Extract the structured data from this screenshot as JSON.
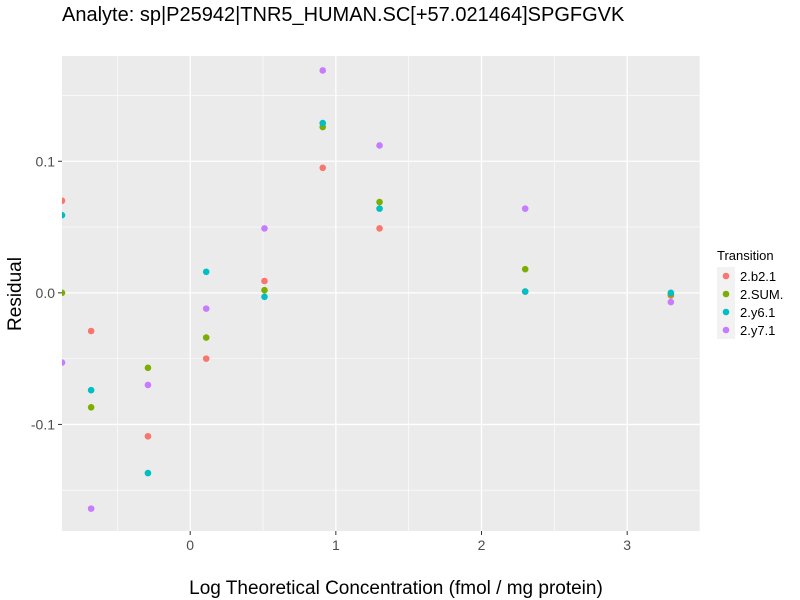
{
  "chart_data": {
    "type": "scatter",
    "title": "Analyte: sp|P25942|TNR5_HUMAN.SC[+57.021464]SPGFGVK",
    "xlabel": "Log Theoretical Concentration (fmol / mg protein)",
    "ylabel": "Residual",
    "xlim": [
      -0.88,
      3.5
    ],
    "ylim": [
      -0.181,
      0.18
    ],
    "x_ticks": [
      0,
      1,
      2,
      3
    ],
    "x_tick_labels": [
      "0",
      "1",
      "2",
      "3"
    ],
    "y_ticks": [
      -0.1,
      0.0,
      0.1
    ],
    "y_tick_labels": [
      "-0.1",
      "0.0",
      "0.1"
    ],
    "grid": true,
    "legend": {
      "title": "Transition",
      "position": "right"
    },
    "series": [
      {
        "name": "2.b2.1",
        "color": "#F8766D",
        "points": [
          [
            -0.88,
            0.07
          ],
          [
            -0.68,
            -0.029
          ],
          [
            -0.29,
            -0.109
          ],
          [
            0.11,
            -0.05
          ],
          [
            0.51,
            0.009
          ],
          [
            0.91,
            0.095
          ],
          [
            1.3,
            0.049
          ],
          [
            2.3,
            0.001
          ],
          [
            3.3,
            -0.002
          ]
        ]
      },
      {
        "name": "2.SUM.",
        "color": "#7CAE00",
        "points": [
          [
            -0.88,
            0.0
          ],
          [
            -0.68,
            -0.087
          ],
          [
            -0.29,
            -0.057
          ],
          [
            0.11,
            -0.034
          ],
          [
            0.51,
            0.002
          ],
          [
            0.91,
            0.126
          ],
          [
            1.3,
            0.069
          ],
          [
            2.3,
            0.018
          ],
          [
            3.3,
            -0.001
          ]
        ]
      },
      {
        "name": "2.y6.1",
        "color": "#00BFC4",
        "points": [
          [
            -0.88,
            0.059
          ],
          [
            -0.68,
            -0.074
          ],
          [
            -0.29,
            -0.137
          ],
          [
            0.11,
            0.016
          ],
          [
            0.51,
            -0.003
          ],
          [
            0.91,
            0.129
          ],
          [
            1.3,
            0.064
          ],
          [
            2.3,
            0.001
          ],
          [
            3.3,
            0.0
          ]
        ]
      },
      {
        "name": "2.y7.1",
        "color": "#C77CFF",
        "points": [
          [
            -0.88,
            -0.053
          ],
          [
            -0.68,
            -0.164
          ],
          [
            -0.29,
            -0.07
          ],
          [
            0.11,
            -0.012
          ],
          [
            0.51,
            0.049
          ],
          [
            0.91,
            0.169
          ],
          [
            1.3,
            0.112
          ],
          [
            2.3,
            0.064
          ],
          [
            3.3,
            -0.007
          ]
        ]
      }
    ]
  }
}
